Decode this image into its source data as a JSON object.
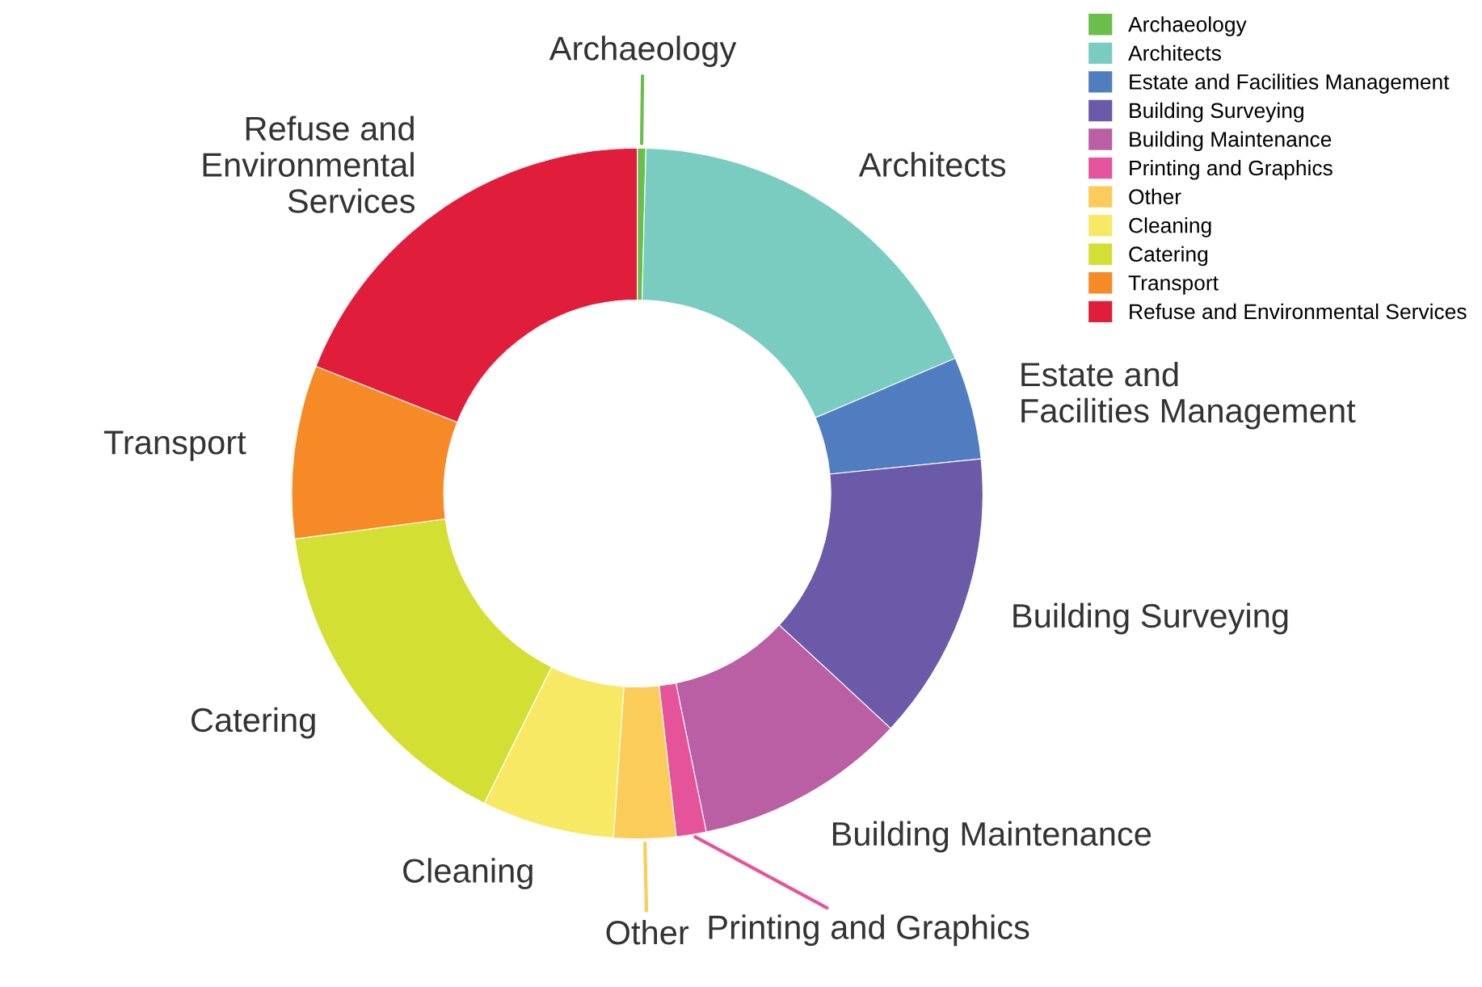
{
  "chart_data": {
    "type": "donut",
    "categories": [
      "Archaeology",
      "Architects",
      "Estate and\nFacilities Management",
      "Building Surveying",
      "Building Maintenance",
      "Printing and Graphics",
      "Other",
      "Cleaning",
      "Catering",
      "Transport",
      "Refuse and\nEnvironmental\nServices"
    ],
    "values": [
      0.4,
      18.2,
      4.8,
      13.5,
      9.9,
      1.4,
      2.9,
      6.2,
      15.6,
      8.1,
      19.0
    ],
    "colors": [
      "#6abf4b",
      "#7accc0",
      "#507dc0",
      "#6a5aa8",
      "#bb5fa5",
      "#e5549b",
      "#fccc5a",
      "#f8e964",
      "#d4df33",
      "#f58a27",
      "#e01d3b"
    ],
    "legend": "top right"
  }
}
